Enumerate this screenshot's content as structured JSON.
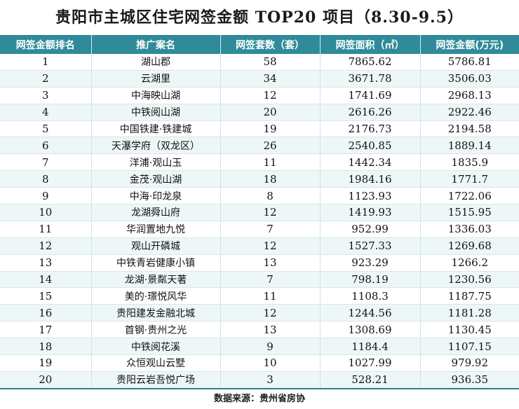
{
  "title": "贵阳市主城区住宅网签金额 TOP20 项目（8.30-9.5）",
  "source": "数据来源：贵州省房协",
  "chart_data": {
    "type": "table",
    "columns": [
      "网签金额排名",
      "推广案名",
      "网签套数（套）",
      "网签面积（㎡）",
      "网签金额(万元)"
    ],
    "rows": [
      [
        "1",
        "湖山郡",
        "58",
        "7865.62",
        "5786.81"
      ],
      [
        "2",
        "云湖里",
        "34",
        "3671.78",
        "3506.03"
      ],
      [
        "3",
        "中海映山湖",
        "12",
        "1741.69",
        "2968.13"
      ],
      [
        "4",
        "中铁阅山湖",
        "20",
        "2616.26",
        "2922.46"
      ],
      [
        "5",
        "中国铁建·铁建城",
        "19",
        "2176.73",
        "2194.58"
      ],
      [
        "6",
        "天瀑学府（双龙区）",
        "26",
        "2540.85",
        "1889.14"
      ],
      [
        "7",
        "洋浦·观山玉",
        "11",
        "1442.34",
        "1835.9"
      ],
      [
        "8",
        "金茂·观山湖",
        "18",
        "1984.16",
        "1771.7"
      ],
      [
        "9",
        "中海·印龙泉",
        "8",
        "1123.93",
        "1722.06"
      ],
      [
        "10",
        "龙湖舜山府",
        "12",
        "1419.93",
        "1515.95"
      ],
      [
        "11",
        "华润置地九悦",
        "7",
        "952.99",
        "1336.03"
      ],
      [
        "12",
        "观山开磷城",
        "12",
        "1527.33",
        "1269.68"
      ],
      [
        "13",
        "中铁青岩健康小镇",
        "13",
        "923.29",
        "1266.2"
      ],
      [
        "14",
        "龙湖·景粼天著",
        "7",
        "798.19",
        "1230.56"
      ],
      [
        "15",
        "美的·璟悦风华",
        "11",
        "1108.3",
        "1187.75"
      ],
      [
        "16",
        "贵阳建发金融北城",
        "12",
        "1244.56",
        "1181.28"
      ],
      [
        "17",
        "首钢·贵州之光",
        "13",
        "1308.69",
        "1130.45"
      ],
      [
        "18",
        "中铁阅花溪",
        "9",
        "1184.4",
        "1107.15"
      ],
      [
        "19",
        "众恒观山云墅",
        "10",
        "1027.99",
        "979.92"
      ],
      [
        "20",
        "贵阳云岩吾悦广场",
        "3",
        "528.21",
        "936.35"
      ]
    ]
  },
  "colors": {
    "header_bg": "#2f8b99",
    "header_text": "#ffffff",
    "row_alt": "#eef7f8"
  }
}
